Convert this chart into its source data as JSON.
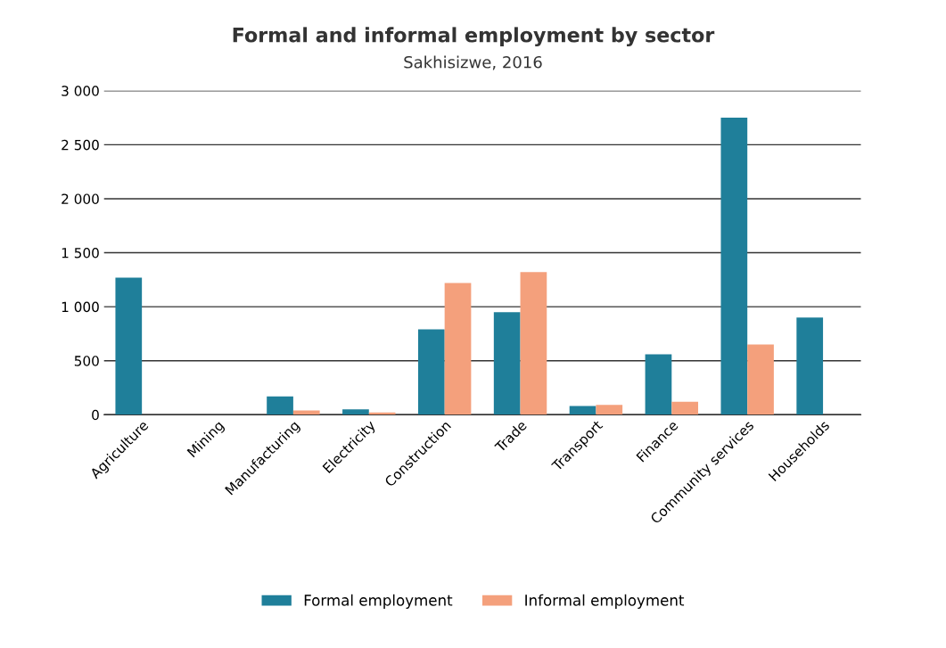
{
  "chart_data": {
    "type": "bar",
    "title": "Formal and informal employment by sector",
    "subtitle": "Sakhisizwe, 2016",
    "categories": [
      "Agriculture",
      "Mining",
      "Manufacturing",
      "Electricity",
      "Construction",
      "Trade",
      "Transport",
      "Finance",
      "Community services",
      "Households"
    ],
    "series": [
      {
        "name": "Formal employment",
        "color": "#1f7f9a",
        "values": [
          1270,
          0,
          170,
          50,
          790,
          950,
          80,
          560,
          2750,
          900
        ]
      },
      {
        "name": "Informal employment",
        "color": "#f4a07c",
        "values": [
          0,
          0,
          40,
          20,
          1220,
          1320,
          90,
          120,
          650,
          0
        ]
      }
    ],
    "ylim": [
      0,
      3000
    ],
    "yticks": [
      {
        "value": 0,
        "label": "0"
      },
      {
        "value": 500,
        "label": "500"
      },
      {
        "value": 1000,
        "label": "1 000"
      },
      {
        "value": 1500,
        "label": "1 500"
      },
      {
        "value": 2000,
        "label": "2 000"
      },
      {
        "value": 2500,
        "label": "2 500"
      },
      {
        "value": 3000,
        "label": "3 000"
      }
    ],
    "grid": "y",
    "legend": "bottom"
  }
}
